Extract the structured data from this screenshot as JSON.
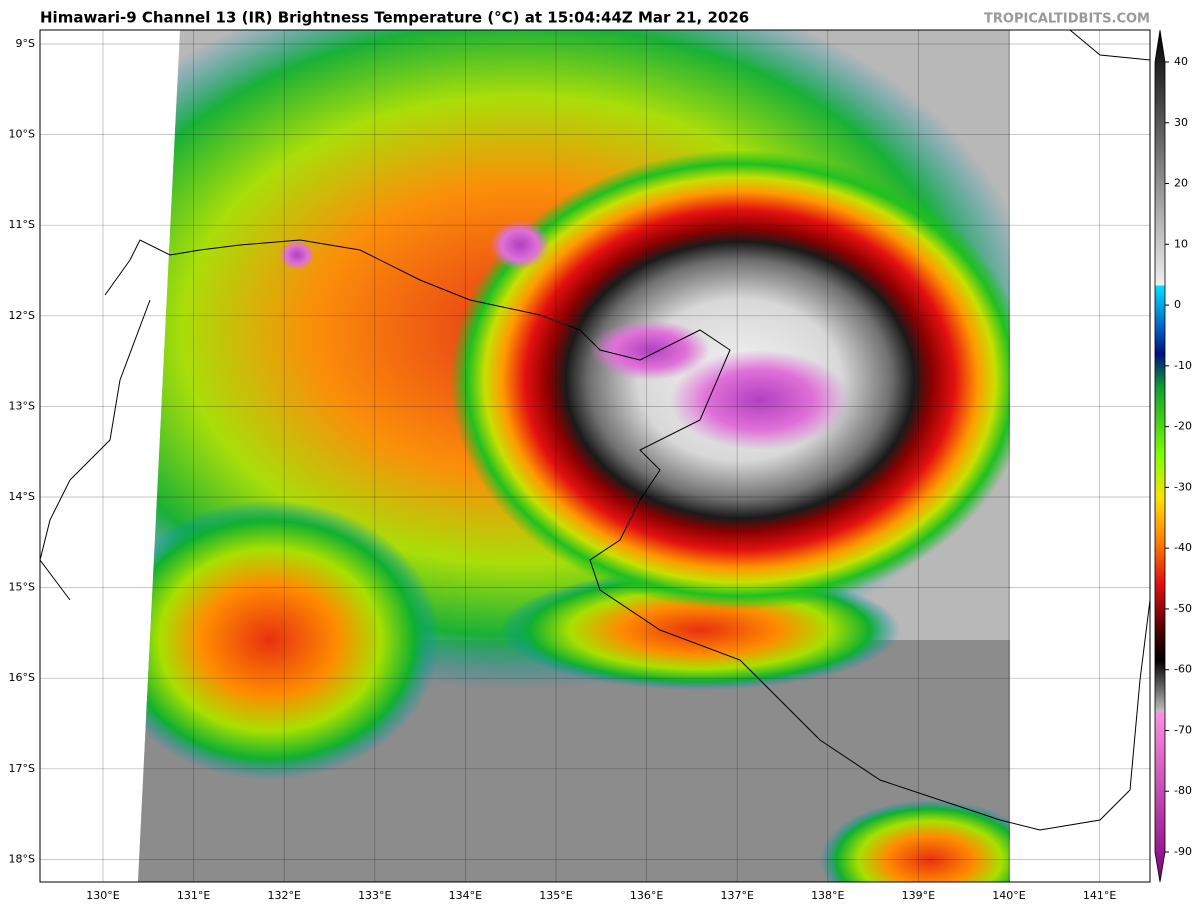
{
  "header": {
    "title": "Himawari-9 Channel 13 (IR) Brightness Temperature (°C) at 15:04:44Z Mar 21, 2026",
    "source": "TROPICALTIDBITS.COM"
  },
  "map": {
    "lat_labels": [
      "9°S",
      "10°S",
      "11°S",
      "12°S",
      "13°S",
      "14°S",
      "15°S",
      "16°S",
      "17°S",
      "18°S"
    ],
    "lon_labels": [
      "130°E",
      "131°E",
      "132°E",
      "133°E",
      "134°E",
      "135°E",
      "136°E",
      "137°E",
      "138°E",
      "139°E",
      "140°E",
      "141°E"
    ]
  },
  "colorbar": {
    "ticks": [
      40,
      30,
      20,
      10,
      0,
      -10,
      -20,
      -30,
      -40,
      -50,
      -60,
      -70,
      -80,
      -90
    ],
    "range": [
      -100,
      45
    ]
  }
}
